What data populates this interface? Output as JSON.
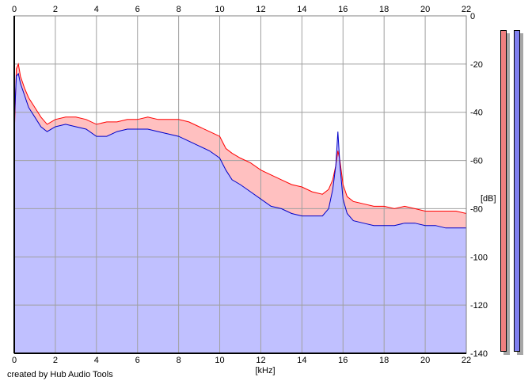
{
  "credit": "created by Hub Audio Tools",
  "meters": {
    "left_color": "#f08080",
    "right_color": "#8080f0"
  },
  "chart_data": {
    "type": "area",
    "title": "",
    "xlabel": "[kHz]",
    "ylabel": "[dB]",
    "xlim": [
      0,
      22
    ],
    "ylim": [
      -140,
      0
    ],
    "x_ticks": [
      0,
      2,
      4,
      6,
      8,
      10,
      12,
      14,
      16,
      18,
      20,
      22
    ],
    "y_ticks": [
      0,
      -20,
      -40,
      -60,
      -80,
      -100,
      -120,
      -140
    ],
    "y_tick_labels": [
      "0",
      "-20",
      "-40",
      "-60",
      "-80",
      "-100",
      "-120",
      "-140"
    ],
    "grid": true,
    "colors": {
      "left": "#ff0000",
      "right": "#0000c8",
      "fill_right": "#c0c0ff",
      "fill_left": "#ffc0c0"
    },
    "series": [
      {
        "color": "#ff0000",
        "x": [
          0,
          0.1,
          0.2,
          0.3,
          0.5,
          0.7,
          1.0,
          1.3,
          1.6,
          2.0,
          2.5,
          3.0,
          3.5,
          4.0,
          4.5,
          5.0,
          5.5,
          6.0,
          6.5,
          7.0,
          7.5,
          8.0,
          8.5,
          9.0,
          9.5,
          10.0,
          10.3,
          10.6,
          11.0,
          11.5,
          12.0,
          12.5,
          13.0,
          13.5,
          14.0,
          14.5,
          15.0,
          15.3,
          15.5,
          15.65,
          15.75,
          15.85,
          16.0,
          16.2,
          16.5,
          17.0,
          17.5,
          18.0,
          18.5,
          19.0,
          19.5,
          20.0,
          20.5,
          21.0,
          21.5,
          22.0
        ],
        "y": [
          -50,
          -22,
          -20,
          -25,
          -30,
          -34,
          -38,
          -42,
          -45,
          -43,
          -42,
          -42,
          -43,
          -45,
          -44,
          -44,
          -43,
          -43,
          -42,
          -43,
          -43,
          -43,
          -44,
          -46,
          -48,
          -50,
          -55,
          -57,
          -59,
          -61,
          -64,
          -66,
          -68,
          -70,
          -71,
          -73,
          -74,
          -72,
          -68,
          -62,
          -56,
          -60,
          -70,
          -75,
          -77,
          -78,
          -79,
          -79,
          -80,
          -79,
          -80,
          -81,
          -81,
          -81,
          -81,
          -82
        ]
      },
      {
        "color": "#0000c8",
        "x": [
          0,
          0.1,
          0.2,
          0.3,
          0.5,
          0.7,
          1.0,
          1.3,
          1.6,
          2.0,
          2.5,
          3.0,
          3.5,
          4.0,
          4.5,
          5.0,
          5.5,
          6.0,
          6.5,
          7.0,
          7.5,
          8.0,
          8.5,
          9.0,
          9.5,
          10.0,
          10.3,
          10.6,
          11.0,
          11.5,
          12.0,
          12.5,
          13.0,
          13.5,
          14.0,
          14.5,
          15.0,
          15.3,
          15.5,
          15.65,
          15.75,
          15.85,
          16.0,
          16.2,
          16.5,
          17.0,
          17.5,
          18.0,
          18.5,
          19.0,
          19.5,
          20.0,
          20.5,
          21.0,
          21.5,
          22.0
        ],
        "y": [
          -45,
          -25,
          -24,
          -28,
          -33,
          -38,
          -42,
          -46,
          -48,
          -46,
          -45,
          -46,
          -47,
          -50,
          -50,
          -48,
          -47,
          -47,
          -47,
          -48,
          -49,
          -50,
          -52,
          -54,
          -56,
          -59,
          -64,
          -68,
          -70,
          -73,
          -76,
          -79,
          -80,
          -82,
          -83,
          -83,
          -83,
          -80,
          -72,
          -62,
          -48,
          -62,
          -76,
          -82,
          -85,
          -86,
          -87,
          -87,
          -87,
          -86,
          -86,
          -87,
          -87,
          -88,
          -88,
          -88
        ]
      }
    ]
  }
}
